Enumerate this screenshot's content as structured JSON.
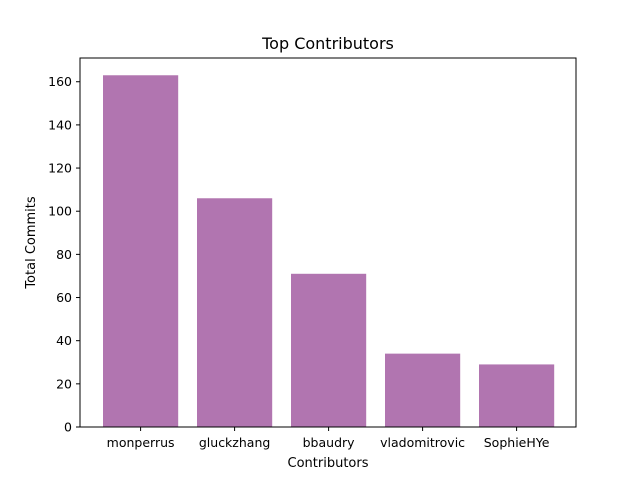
{
  "chart_data": {
    "type": "bar",
    "title": "Top Contributors",
    "xlabel": "Contributors",
    "ylabel": "Total Commits",
    "categories": [
      "monperrus",
      "gluckzhang",
      "bbaudry",
      "vladomitrovic",
      "SophieHYe"
    ],
    "values": [
      163,
      106,
      71,
      34,
      29
    ],
    "ylim": [
      0,
      171
    ],
    "yticks": [
      0,
      20,
      40,
      60,
      80,
      100,
      120,
      140,
      160
    ],
    "grid": false,
    "bar_color": "#b175b0"
  }
}
